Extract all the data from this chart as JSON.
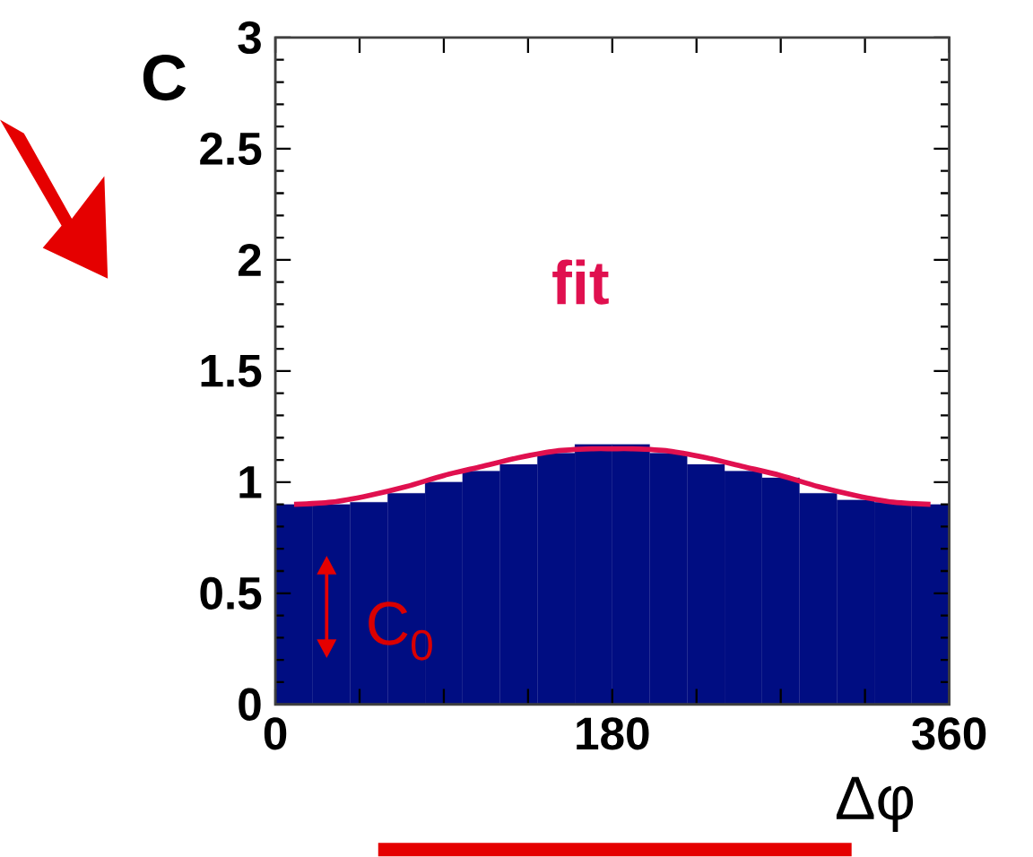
{
  "chart_data": {
    "type": "histogram",
    "xlabel": "Δφ",
    "ylabel": "C",
    "series": [
      {
        "color": "#000d82",
        "bins": [
          0,
          20,
          40,
          60,
          80,
          100,
          120,
          140,
          160,
          180,
          200,
          220,
          240,
          260,
          280,
          300,
          320,
          340,
          360
        ],
        "values": [
          0.9,
          0.9,
          0.91,
          0.95,
          1.0,
          1.05,
          1.08,
          1.13,
          1.17,
          1.17,
          1.13,
          1.08,
          1.05,
          1.02,
          0.95,
          0.92,
          0.91,
          0.9
        ]
      },
      {
        "type": "line",
        "name": "fit",
        "color": "#e0104f",
        "x": [
          10,
          30,
          50,
          70,
          90,
          110,
          130,
          150,
          170,
          180,
          190,
          210,
          230,
          250,
          270,
          290,
          310,
          330,
          350
        ],
        "values": [
          0.9,
          0.91,
          0.94,
          0.98,
          1.03,
          1.07,
          1.11,
          1.14,
          1.15,
          1.15,
          1.15,
          1.14,
          1.11,
          1.07,
          1.03,
          0.98,
          0.94,
          0.91,
          0.9
        ]
      }
    ],
    "annotations": [
      "C$_{0}$"
    ],
    "xlim": [
      0,
      360
    ],
    "ylim": [
      0,
      3
    ],
    "xticks": [
      0,
      {
        "value": 45,
        "label": null
      },
      {
        "value": 90,
        "label": null
      },
      {
        "value": 135,
        "label": null
      },
      180,
      {
        "value": 225,
        "label": null
      },
      {
        "value": 270,
        "label": null
      },
      {
        "value": 315,
        "label": null
      },
      360
    ],
    "yticks": [
      0,
      0.5,
      1,
      1.5,
      2,
      2.5,
      3
    ],
    "grid": false
  }
}
